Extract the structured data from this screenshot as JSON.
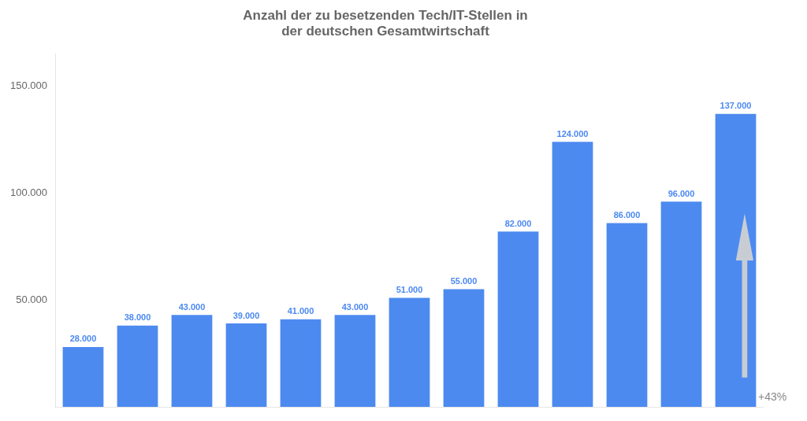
{
  "chart_data": {
    "type": "bar",
    "title": "Anzahl der zu besetzenden Tech/IT-Stellen in\nder deutschen Gesamtwirtschaft",
    "categories": [
      null,
      null,
      null,
      null,
      null,
      null,
      null,
      null,
      null,
      null,
      null,
      null,
      null
    ],
    "values": [
      28000,
      38000,
      43000,
      39000,
      41000,
      43000,
      51000,
      55000,
      82000,
      124000,
      86000,
      96000,
      137000
    ],
    "value_labels": [
      "28.000",
      "38.000",
      "43.000",
      "39.000",
      "41.000",
      "43.000",
      "51.000",
      "55.000",
      "82.000",
      "124.000",
      "86.000",
      "96.000",
      "137.000"
    ],
    "data_labels": true,
    "color": "#4d8af0",
    "ylim": [
      0,
      165000
    ],
    "yticks": [
      {
        "value": 50000,
        "label": "50.000"
      },
      {
        "value": 100000,
        "label": "100.000"
      },
      {
        "value": 150000,
        "label": "150.000"
      }
    ],
    "grid": false,
    "tick_labels": "y",
    "annotations": [
      "+43%"
    ]
  }
}
